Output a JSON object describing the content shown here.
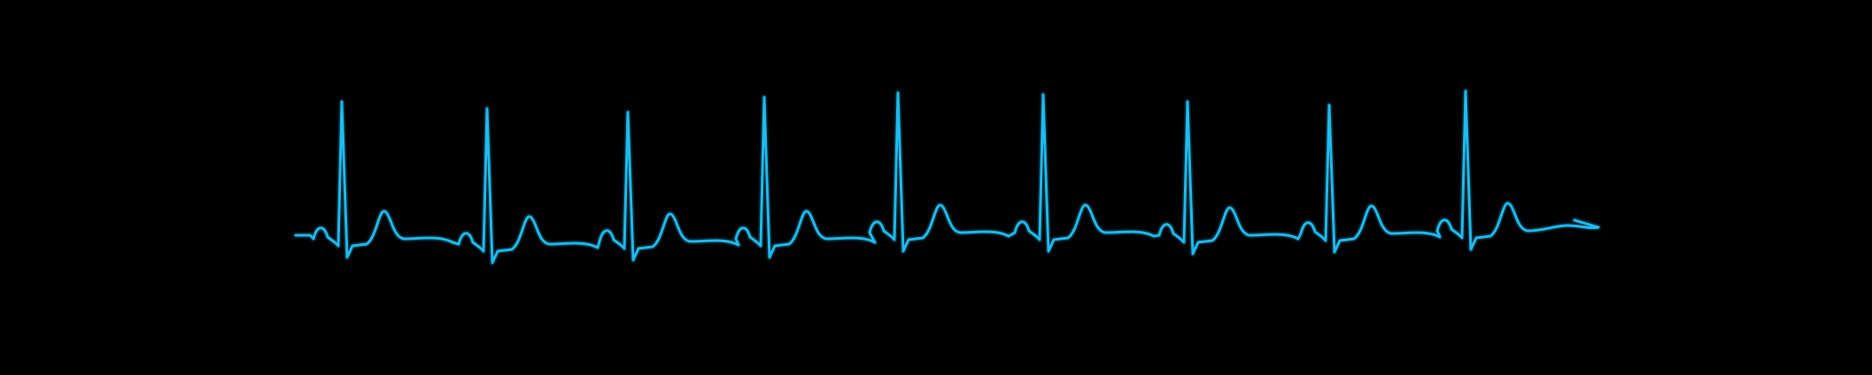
{
  "colors": {
    "background": "#000000",
    "trace": "#1cbcf0"
  },
  "ecg": {
    "beat_count": 9
  }
}
